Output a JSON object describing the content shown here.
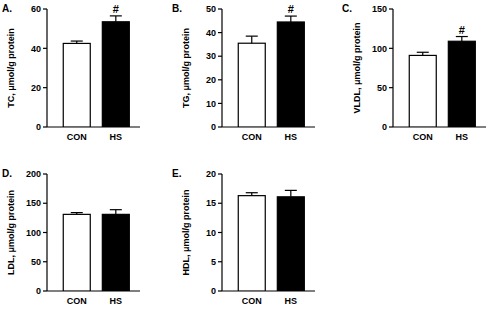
{
  "chart_data": [
    {
      "type": "bar",
      "panel_label": "A.",
      "ylabel": "TC, μmol/g protein",
      "categories": [
        "CON",
        "HS"
      ],
      "values": [
        42.5,
        53.5
      ],
      "errors": [
        1.2,
        3.0
      ],
      "significance": [
        null,
        "#"
      ],
      "colors": [
        "#ffffff",
        "#000000"
      ],
      "ylim": [
        0,
        60
      ],
      "yticks": [
        0,
        20,
        40,
        60
      ]
    },
    {
      "type": "bar",
      "panel_label": "B.",
      "ylabel": "TG, μmol/g protein",
      "categories": [
        "CON",
        "HS"
      ],
      "values": [
        35.5,
        44.5
      ],
      "errors": [
        3.0,
        2.5
      ],
      "significance": [
        null,
        "#"
      ],
      "colors": [
        "#ffffff",
        "#000000"
      ],
      "ylim": [
        0,
        50
      ],
      "yticks": [
        0,
        10,
        20,
        30,
        40,
        50
      ]
    },
    {
      "type": "bar",
      "panel_label": "C.",
      "ylabel": "VLDL, μmol/g protein",
      "categories": [
        "CON",
        "HS"
      ],
      "values": [
        91,
        109
      ],
      "errors": [
        4,
        6
      ],
      "significance": [
        null,
        "#"
      ],
      "colors": [
        "#ffffff",
        "#000000"
      ],
      "ylim": [
        0,
        150
      ],
      "yticks": [
        0,
        50,
        100,
        150
      ]
    },
    {
      "type": "bar",
      "panel_label": "D.",
      "ylabel": "LDL, μmol/g protein",
      "categories": [
        "CON",
        "HS"
      ],
      "values": [
        131,
        131
      ],
      "errors": [
        3,
        8
      ],
      "significance": [
        null,
        null
      ],
      "colors": [
        "#ffffff",
        "#000000"
      ],
      "ylim": [
        0,
        200
      ],
      "yticks": [
        0,
        50,
        100,
        150,
        200
      ]
    },
    {
      "type": "bar",
      "panel_label": "E.",
      "ylabel": "HDL, μmol/g protein",
      "categories": [
        "CON",
        "HS"
      ],
      "values": [
        16.3,
        16.1
      ],
      "errors": [
        0.5,
        1.1
      ],
      "significance": [
        null,
        null
      ],
      "colors": [
        "#ffffff",
        "#000000"
      ],
      "ylim": [
        0,
        20
      ],
      "yticks": [
        0,
        5,
        10,
        15,
        20
      ]
    }
  ]
}
